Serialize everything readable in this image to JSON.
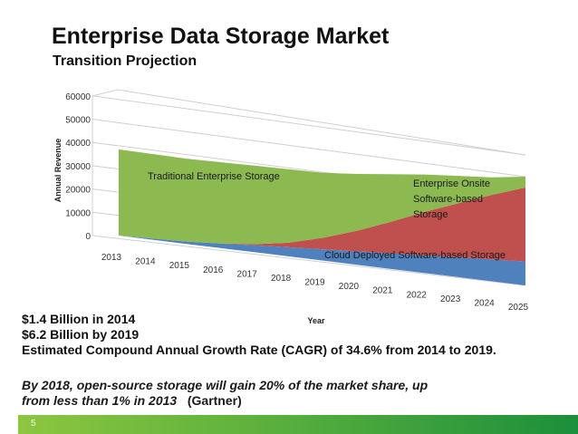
{
  "slide": {
    "title": "Enterprise Data Storage Market",
    "subtitle": "Transition Projection",
    "stats": [
      "$1.4 Billion in 2014",
      "$6.2 Billion by 2019",
      "Estimated Compound Annual Growth Rate (CAGR) of 34.6% from 2014 to 2019."
    ],
    "note_line1": "By 2018, open-source storage will gain 20% of the market share, up",
    "note_line2": "from less than 1% in 2013",
    "note_source": "(Gartner)",
    "page_number": "5"
  },
  "colors": {
    "traditional": "#8cb950",
    "onsite": "#c0504d",
    "cloud": "#4f81bd",
    "footer_start": "#8dc63f",
    "footer_end": "#1c8f3b"
  },
  "chart_data": {
    "type": "area",
    "stacked": true,
    "title": "",
    "xlabel": "Year",
    "ylabel": "Annual Revenue",
    "x": [
      "2013",
      "2014",
      "2015",
      "2016",
      "2017",
      "2018",
      "2019",
      "2020",
      "2021",
      "2022",
      "2023",
      "2024",
      "2025"
    ],
    "ylim": [
      0,
      60000
    ],
    "yticks": [
      0,
      10000,
      20000,
      30000,
      40000,
      50000,
      60000
    ],
    "grid": true,
    "series": [
      {
        "name": "Cloud Deployed Software-based Storage",
        "color_key": "cloud",
        "values": [
          0,
          500,
          1000,
          2000,
          3000,
          4000,
          5000,
          6000,
          7000,
          8000,
          9000,
          10000,
          11000
        ]
      },
      {
        "name": "Enterprise Onsite Software-based Storage",
        "color_key": "onsite",
        "values": [
          0,
          0,
          0,
          0,
          500,
          2000,
          5000,
          9000,
          14000,
          19500,
          24500,
          29500,
          34000
        ]
      },
      {
        "name": "Traditional Enterprise Storage",
        "color_key": "traditional",
        "values": [
          37000,
          36500,
          36000,
          35500,
          34500,
          32500,
          29000,
          25500,
          21500,
          17000,
          12500,
          8000,
          5000
        ]
      }
    ]
  }
}
